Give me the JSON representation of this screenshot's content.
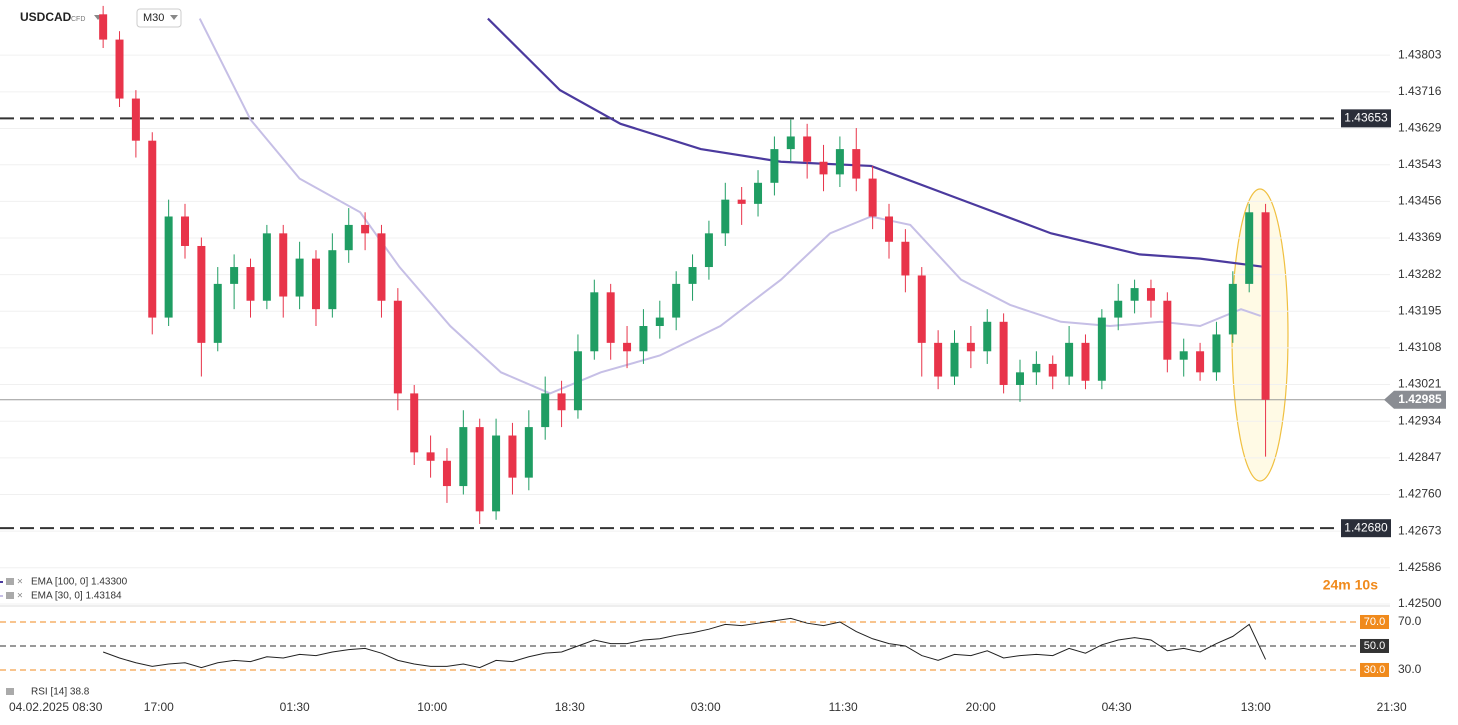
{
  "chart_data": {
    "type": "candlestick",
    "symbol": "USDCAD",
    "instrument": "CFD",
    "timeframe": "M30",
    "up_color": "#1f9d63",
    "down_color": "#e8344a",
    "grid": true,
    "x": [
      0,
      1,
      2,
      3,
      4,
      5,
      6,
      7,
      8,
      9,
      10,
      11,
      12,
      13,
      14,
      15,
      16,
      17,
      18,
      19,
      20,
      21,
      22,
      23,
      24,
      25,
      26,
      27,
      28,
      29,
      30,
      31,
      32,
      33,
      34,
      35,
      36,
      37,
      38,
      39,
      40,
      41,
      42,
      43,
      44,
      45,
      46,
      47,
      48,
      49,
      50,
      51,
      52,
      53,
      54,
      55,
      56,
      57,
      58,
      59,
      60,
      61,
      62,
      63,
      64,
      65,
      66,
      67,
      68,
      69,
      70,
      71
    ],
    "open": [
      1.439,
      1.4384,
      1.437,
      1.436,
      1.4318,
      1.4342,
      1.4335,
      1.4312,
      1.4326,
      1.433,
      1.4322,
      1.4338,
      1.4323,
      1.4332,
      1.432,
      1.4334,
      1.434,
      1.4338,
      1.4322,
      1.43,
      1.4286,
      1.4284,
      1.4278,
      1.4292,
      1.4272,
      1.429,
      1.428,
      1.4292,
      1.43,
      1.4296,
      1.431,
      1.4324,
      1.4312,
      1.431,
      1.4316,
      1.4318,
      1.4326,
      1.433,
      1.4338,
      1.4346,
      1.4345,
      1.435,
      1.4358,
      1.4361,
      1.4355,
      1.4352,
      1.4358,
      1.4351,
      1.4342,
      1.4336,
      1.4328,
      1.4312,
      1.4304,
      1.4312,
      1.431,
      1.4317,
      1.4302,
      1.4305,
      1.4307,
      1.4304,
      1.4312,
      1.4303,
      1.4318,
      1.4322,
      1.4325,
      1.4322,
      1.4308,
      1.431,
      1.4305,
      1.4314,
      1.4326,
      1.4343
    ],
    "high": [
      1.4392,
      1.4386,
      1.4372,
      1.4362,
      1.4346,
      1.4345,
      1.4337,
      1.433,
      1.4333,
      1.4332,
      1.434,
      1.434,
      1.4336,
      1.4334,
      1.4338,
      1.4344,
      1.4343,
      1.434,
      1.4325,
      1.4302,
      1.429,
      1.4287,
      1.4296,
      1.4294,
      1.4294,
      1.4293,
      1.4296,
      1.4304,
      1.4303,
      1.4314,
      1.4327,
      1.4326,
      1.4316,
      1.432,
      1.4322,
      1.4329,
      1.4333,
      1.4341,
      1.435,
      1.4349,
      1.4353,
      1.4361,
      1.4365,
      1.4364,
      1.4359,
      1.4361,
      1.4363,
      1.4354,
      1.4345,
      1.4339,
      1.433,
      1.4315,
      1.4315,
      1.4316,
      1.432,
      1.4319,
      1.4308,
      1.431,
      1.4309,
      1.4316,
      1.4314,
      1.432,
      1.4326,
      1.4327,
      1.4327,
      1.4324,
      1.4313,
      1.4312,
      1.4317,
      1.4329,
      1.4345,
      1.4345
    ],
    "low": [
      1.4382,
      1.4368,
      1.4356,
      1.4314,
      1.4316,
      1.4332,
      1.4304,
      1.431,
      1.432,
      1.4318,
      1.432,
      1.4318,
      1.432,
      1.4316,
      1.4318,
      1.4331,
      1.4334,
      1.4318,
      1.4296,
      1.4283,
      1.428,
      1.4274,
      1.4276,
      1.4269,
      1.427,
      1.4276,
      1.4277,
      1.4289,
      1.4292,
      1.4294,
      1.4308,
      1.4308,
      1.4306,
      1.4307,
      1.4313,
      1.4315,
      1.4322,
      1.4327,
      1.4335,
      1.434,
      1.4342,
      1.4347,
      1.4355,
      1.4351,
      1.4348,
      1.4349,
      1.4348,
      1.4339,
      1.4332,
      1.4324,
      1.4304,
      1.4301,
      1.4302,
      1.4306,
      1.4307,
      1.43,
      1.4298,
      1.4302,
      1.4301,
      1.4302,
      1.4301,
      1.4301,
      1.4315,
      1.4319,
      1.4318,
      1.4305,
      1.4304,
      1.4303,
      1.4303,
      1.4312,
      1.4324,
      1.4285
    ],
    "close": [
      1.4384,
      1.437,
      1.436,
      1.4318,
      1.4342,
      1.4335,
      1.4312,
      1.4326,
      1.433,
      1.4322,
      1.4338,
      1.4323,
      1.4332,
      1.432,
      1.4334,
      1.434,
      1.4338,
      1.4322,
      1.43,
      1.4286,
      1.4284,
      1.4278,
      1.4292,
      1.4272,
      1.429,
      1.428,
      1.4292,
      1.43,
      1.4296,
      1.431,
      1.4324,
      1.4312,
      1.431,
      1.4316,
      1.4318,
      1.4326,
      1.433,
      1.4338,
      1.4346,
      1.4345,
      1.435,
      1.4358,
      1.4361,
      1.4355,
      1.4352,
      1.4358,
      1.4351,
      1.4342,
      1.4336,
      1.4328,
      1.4312,
      1.4304,
      1.4312,
      1.431,
      1.4317,
      1.4302,
      1.4305,
      1.4307,
      1.4304,
      1.4312,
      1.4303,
      1.4318,
      1.4322,
      1.4325,
      1.4322,
      1.4308,
      1.431,
      1.4305,
      1.4314,
      1.4326,
      1.4343,
      1.42985
    ],
    "xlim": [
      -6.3,
      78.6
    ],
    "xticks": [
      {
        "value": -2.9,
        "label": "04.02.2025  08:30"
      },
      {
        "value": 3.4,
        "label": "17:00"
      },
      {
        "value": 11.7,
        "label": "01:30"
      },
      {
        "value": 20.1,
        "label": "10:00"
      },
      {
        "value": 28.5,
        "label": "18:30"
      },
      {
        "value": 36.8,
        "label": "03:00"
      },
      {
        "value": 45.2,
        "label": "11:30"
      },
      {
        "value": 53.6,
        "label": "20:00"
      },
      {
        "value": 61.9,
        "label": "04:30"
      },
      {
        "value": 70.4,
        "label": "13:00"
      },
      {
        "value": 78.7,
        "label": "21:30"
      }
    ],
    "ylim": [
      1.425,
      1.43934
    ],
    "yticks": [
      1.43803,
      1.43716,
      1.43629,
      1.43543,
      1.43456,
      1.43369,
      1.43282,
      1.43195,
      1.43108,
      1.43021,
      1.42934,
      1.42847,
      {
        "value": 1.4276,
        "label": "1.42760"
      },
      1.42673,
      1.42586,
      {
        "value": 1.425,
        "label": "1.42500"
      }
    ],
    "series": [
      {
        "name": "EMA [100, 0] 1.43300",
        "color": "#4b3a9e",
        "x": [
          23.5,
          27.9,
          31.6,
          36.5,
          41.4,
          46.9,
          52.4,
          57.9,
          63.3,
          67.0,
          71
        ],
        "values": [
          1.4389,
          1.4372,
          1.4364,
          1.4358,
          1.4355,
          1.4354,
          1.4346,
          1.4338,
          1.4333,
          1.4332,
          1.433
        ]
      },
      {
        "name": "EMA [30, 0] 1.43184",
        "color": "#c6bfe6",
        "x": [
          5.9,
          9,
          12,
          15.7,
          18.1,
          21.2,
          24.3,
          27.3,
          30.4,
          34,
          37.7,
          41.4,
          44.4,
          46.9,
          49.3,
          52.4,
          55.4,
          58.5,
          61.5,
          64.6,
          67,
          69.5,
          70.7
        ],
        "values": [
          1.4389,
          1.4365,
          1.4351,
          1.4343,
          1.433,
          1.4316,
          1.4305,
          1.43,
          1.4305,
          1.4309,
          1.4316,
          1.4327,
          1.4338,
          1.4342,
          1.434,
          1.4327,
          1.4321,
          1.4317,
          1.4316,
          1.4317,
          1.4316,
          1.432,
          1.43184
        ]
      }
    ],
    "levels": [
      {
        "value": 1.43653,
        "label": "1.43653"
      },
      {
        "value": 1.4268,
        "label": "1.42680"
      }
    ],
    "last_price": {
      "value": 1.42985,
      "label": "1.42985"
    },
    "countdown": "24m 10s",
    "rsi": {
      "name": "RSI [14] 38.8",
      "color": "#222222",
      "ylim": [
        13.3,
        82.5
      ],
      "values": [
        45,
        40,
        36,
        33,
        35,
        36,
        32,
        36,
        38,
        37,
        41,
        40,
        43,
        42,
        45,
        47,
        48,
        44,
        38,
        35,
        33,
        33,
        35,
        32,
        38,
        37,
        41,
        44,
        45,
        50,
        55,
        52,
        52,
        55,
        56,
        59,
        61,
        64,
        68,
        67,
        69,
        71,
        73,
        69,
        67,
        70,
        62,
        56,
        52,
        50,
        42,
        38,
        43,
        42,
        46,
        40,
        42,
        43,
        42,
        48,
        44,
        51,
        55,
        57,
        55,
        46,
        48,
        45,
        52,
        58,
        68,
        38.8
      ],
      "levels": [
        {
          "value": 70,
          "label": "70.0",
          "color": "#f08a1c"
        },
        {
          "value": 50,
          "label": "50.0",
          "color": "#333333"
        },
        {
          "value": 30,
          "label": "30.0",
          "color": "#f08a1c"
        }
      ],
      "yticks": [
        {
          "value": 70,
          "label": "70.0"
        },
        {
          "value": 30,
          "label": "30.0"
        }
      ]
    }
  }
}
